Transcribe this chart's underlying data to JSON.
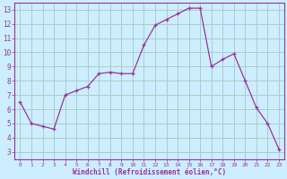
{
  "x": [
    0,
    1,
    2,
    3,
    4,
    5,
    6,
    7,
    8,
    9,
    10,
    11,
    12,
    13,
    14,
    15,
    16,
    17,
    18,
    19,
    20,
    21,
    22,
    23
  ],
  "y": [
    6.5,
    5.0,
    4.8,
    4.6,
    7.0,
    7.3,
    7.6,
    8.5,
    8.6,
    8.5,
    8.5,
    10.5,
    11.9,
    12.3,
    12.7,
    13.1,
    13.1,
    9.0,
    9.5,
    9.9,
    8.0,
    6.1,
    5.0,
    3.2
  ],
  "line_color": "#993399",
  "marker": "+",
  "marker_color": "#993399",
  "bg_color": "#cceeff",
  "grid_color": "#aacccc",
  "xlabel": "Windchill (Refroidissement éolien,°C)",
  "xlabel_color": "#993399",
  "tick_color": "#993399",
  "ylabel_ticks": [
    3,
    4,
    5,
    6,
    7,
    8,
    9,
    10,
    11,
    12,
    13
  ],
  "xlim": [
    -0.5,
    23.5
  ],
  "ylim": [
    2.5,
    13.5
  ],
  "xticks": [
    0,
    1,
    2,
    3,
    4,
    5,
    6,
    7,
    8,
    9,
    10,
    11,
    12,
    13,
    14,
    15,
    16,
    17,
    18,
    19,
    20,
    21,
    22,
    23
  ]
}
